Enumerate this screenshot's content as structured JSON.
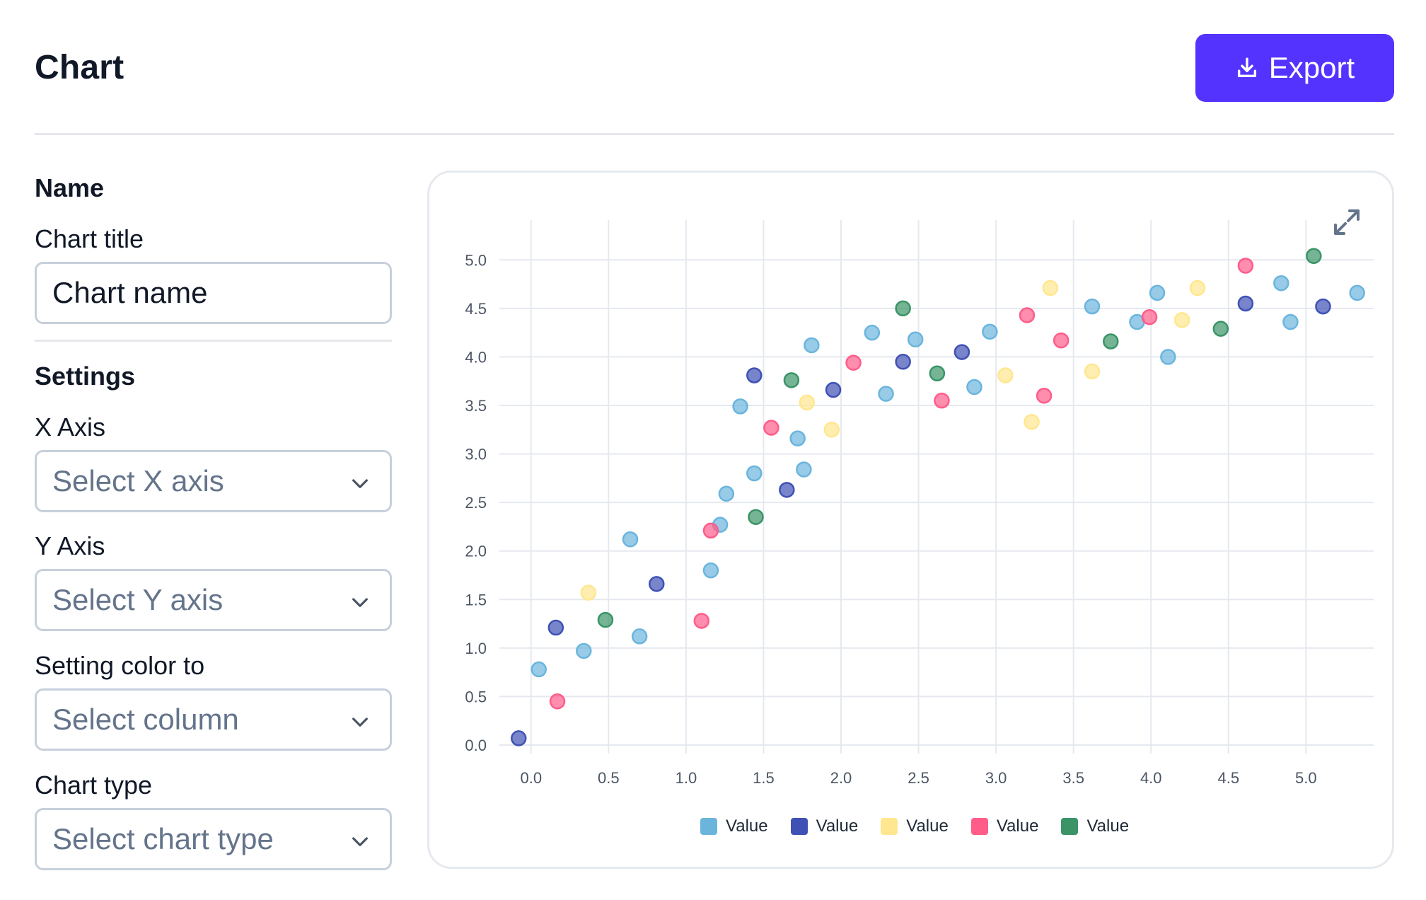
{
  "header": {
    "title": "Chart",
    "export_label": "Export",
    "export_icon": "download-icon"
  },
  "panel": {
    "name_section": "Name",
    "chart_title_label": "Chart title",
    "chart_title_value": "Chart name",
    "settings_section": "Settings",
    "x_axis_label": "X Axis",
    "x_axis_value": "Select X axis",
    "y_axis_label": "Y Axis",
    "y_axis_value": "Select Y axis",
    "color_label": "Setting color to",
    "color_value": "Select column",
    "chart_type_label": "Chart type",
    "chart_type_value": "Select chart type"
  },
  "chart_controls": {
    "expand_icon": "expand-icon"
  },
  "colors": {
    "accent": "#5533ff",
    "series": [
      "#6bb5dd",
      "#3f51b5",
      "#ffe78f",
      "#ff5c8a",
      "#3a9467"
    ]
  },
  "chart_data": {
    "type": "scatter",
    "title": "",
    "xlabel": "",
    "ylabel": "",
    "xlim": [
      -0.25,
      5.4
    ],
    "ylim": [
      0,
      5.25
    ],
    "x_ticks": [
      "0.0",
      "0.5",
      "1.0",
      "1.5",
      "2.0",
      "2.5",
      "3.0",
      "3.5",
      "4.0",
      "4.5",
      "5.0"
    ],
    "y_ticks": [
      "0.0",
      "0.5",
      "1.0",
      "1.5",
      "2.0",
      "2.5",
      "3.0",
      "3.5",
      "4.0",
      "4.5",
      "5.0"
    ],
    "grid": true,
    "legend_position": "bottom-center",
    "series": [
      {
        "name": "Value",
        "color": "#6bb5dd",
        "points": [
          [
            0.05,
            0.78
          ],
          [
            0.34,
            0.97
          ],
          [
            0.64,
            2.12
          ],
          [
            0.7,
            1.12
          ],
          [
            1.16,
            1.8
          ],
          [
            1.22,
            2.27
          ],
          [
            1.26,
            2.59
          ],
          [
            1.35,
            3.49
          ],
          [
            1.44,
            2.8
          ],
          [
            1.72,
            3.16
          ],
          [
            1.76,
            2.84
          ],
          [
            1.81,
            4.12
          ],
          [
            2.2,
            4.25
          ],
          [
            2.29,
            3.62
          ],
          [
            2.48,
            4.18
          ],
          [
            2.86,
            3.69
          ],
          [
            2.96,
            4.26
          ],
          [
            3.62,
            4.52
          ],
          [
            3.91,
            4.36
          ],
          [
            4.04,
            4.66
          ],
          [
            4.11,
            4.0
          ],
          [
            4.84,
            4.76
          ],
          [
            4.9,
            4.36
          ],
          [
            5.33,
            4.66
          ]
        ]
      },
      {
        "name": "Value",
        "color": "#3f51b5",
        "points": [
          [
            -0.08,
            0.07
          ],
          [
            0.16,
            1.21
          ],
          [
            0.81,
            1.66
          ],
          [
            1.44,
            3.81
          ],
          [
            1.65,
            2.63
          ],
          [
            1.95,
            3.66
          ],
          [
            2.4,
            3.95
          ],
          [
            2.78,
            4.05
          ],
          [
            4.61,
            4.55
          ],
          [
            5.11,
            4.52
          ]
        ]
      },
      {
        "name": "Value",
        "color": "#ffe78f",
        "points": [
          [
            0.37,
            1.57
          ],
          [
            1.78,
            3.53
          ],
          [
            1.94,
            3.25
          ],
          [
            3.06,
            3.81
          ],
          [
            3.23,
            3.33
          ],
          [
            3.35,
            4.71
          ],
          [
            3.62,
            3.85
          ],
          [
            4.2,
            4.38
          ],
          [
            4.3,
            4.71
          ]
        ]
      },
      {
        "name": "Value",
        "color": "#ff5c8a",
        "points": [
          [
            0.17,
            0.45
          ],
          [
            1.1,
            1.28
          ],
          [
            1.16,
            2.21
          ],
          [
            1.55,
            3.27
          ],
          [
            2.08,
            3.94
          ],
          [
            2.65,
            3.55
          ],
          [
            3.2,
            4.43
          ],
          [
            3.31,
            3.6
          ],
          [
            3.42,
            4.17
          ],
          [
            3.99,
            4.41
          ],
          [
            4.61,
            4.94
          ]
        ]
      },
      {
        "name": "Value",
        "color": "#3a9467",
        "points": [
          [
            0.48,
            1.29
          ],
          [
            1.45,
            2.35
          ],
          [
            1.68,
            3.76
          ],
          [
            2.4,
            4.5
          ],
          [
            2.62,
            3.83
          ],
          [
            3.74,
            4.16
          ],
          [
            4.45,
            4.29
          ],
          [
            5.05,
            5.04
          ]
        ]
      }
    ]
  }
}
